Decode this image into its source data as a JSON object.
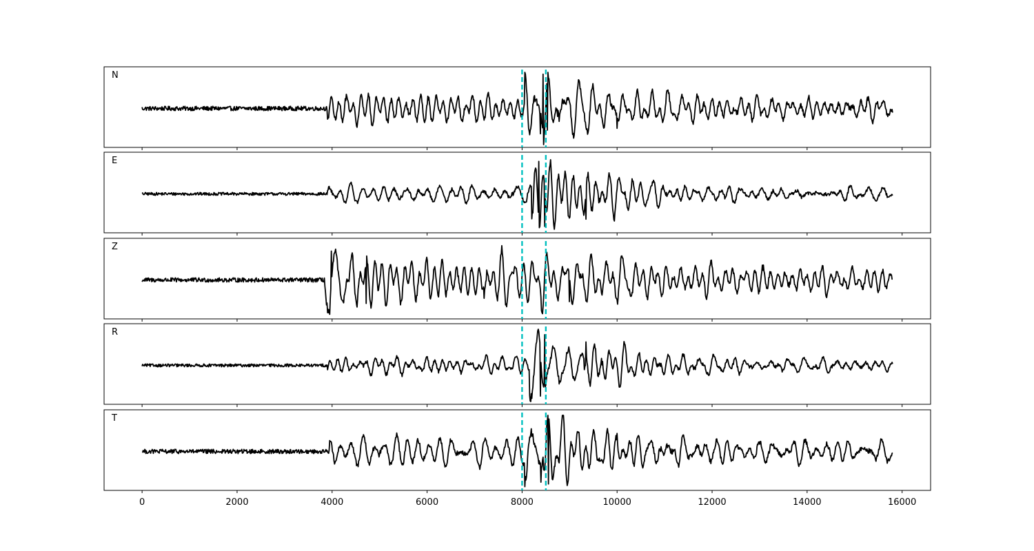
{
  "chart_data": {
    "type": "line",
    "layout": "stacked-panels",
    "shared_x": true,
    "xlim": [
      -800,
      16600
    ],
    "xticks": [
      0,
      2000,
      4000,
      6000,
      8000,
      10000,
      12000,
      14000,
      16000
    ],
    "xtick_labels": [
      "0",
      "2000",
      "4000",
      "6000",
      "8000",
      "10000",
      "12000",
      "14000",
      "16000"
    ],
    "x_range": [
      0,
      15800
    ],
    "grid": false,
    "trace_color": "#000000",
    "marker_color": "#00BFBF",
    "vertical_markers": [
      {
        "x": 8000,
        "style": "dashed"
      },
      {
        "x": 8500,
        "style": "dashed"
      }
    ],
    "panels": [
      {
        "label": "N",
        "noise": 0.06,
        "events": [
          {
            "t": 3900,
            "amp": 0.35,
            "decay": 6e-05
          },
          {
            "t": 8050,
            "amp": 1.0,
            "decay": 0.0012
          },
          {
            "t": 8450,
            "amp": 0.7,
            "decay": 0.0006
          }
        ],
        "coda": 0.28,
        "spikes": [
          {
            "x": 8380,
            "y": -0.7
          },
          {
            "x": 8440,
            "y": 0.95
          },
          {
            "x": 8530,
            "y": -0.6
          },
          {
            "x": 10000,
            "y": -0.55
          }
        ]
      },
      {
        "label": "E",
        "noise": 0.04,
        "events": [
          {
            "t": 3900,
            "amp": 0.18,
            "decay": 8e-05
          },
          {
            "t": 7800,
            "amp": 0.2,
            "decay": 0.0002
          },
          {
            "t": 8200,
            "amp": 1.0,
            "decay": 0.0007
          },
          {
            "t": 9200,
            "amp": 0.5,
            "decay": 0.0004
          }
        ],
        "coda": 0.2,
        "spikes": [
          {
            "x": 8350,
            "y": 0.9
          },
          {
            "x": 8480,
            "y": -0.9
          },
          {
            "x": 9350,
            "y": -0.7
          }
        ]
      },
      {
        "label": "Z",
        "noise": 0.06,
        "events": [
          {
            "t": 3830,
            "amp": 1.0,
            "decay": 0.0012
          },
          {
            "t": 4300,
            "amp": 0.5,
            "decay": 8e-05
          },
          {
            "t": 7200,
            "amp": 0.5,
            "decay": 0.0004
          },
          {
            "t": 8400,
            "amp": 0.5,
            "decay": 0.0005
          }
        ],
        "coda": 0.3,
        "spikes": [
          {
            "x": 3950,
            "y": -0.95
          },
          {
            "x": 3980,
            "y": 0.8
          },
          {
            "x": 4720,
            "y": -0.65
          },
          {
            "x": 9000,
            "y": -0.6
          }
        ]
      },
      {
        "label": "R",
        "noise": 0.04,
        "events": [
          {
            "t": 3900,
            "amp": 0.15,
            "decay": 8e-05
          },
          {
            "t": 7800,
            "amp": 0.2,
            "decay": 0.0002
          },
          {
            "t": 8150,
            "amp": 1.0,
            "decay": 0.0008
          },
          {
            "t": 9300,
            "amp": 0.55,
            "decay": 0.0005
          }
        ],
        "coda": 0.22,
        "spikes": [
          {
            "x": 8380,
            "y": -0.85
          },
          {
            "x": 8470,
            "y": 0.85
          },
          {
            "x": 9350,
            "y": 0.65
          }
        ]
      },
      {
        "label": "T",
        "noise": 0.06,
        "events": [
          {
            "t": 3950,
            "amp": 0.35,
            "decay": 6e-05
          },
          {
            "t": 8050,
            "amp": 1.0,
            "decay": 0.0012
          },
          {
            "t": 8450,
            "amp": 0.7,
            "decay": 0.0006
          }
        ],
        "coda": 0.3,
        "spikes": [
          {
            "x": 8400,
            "y": -0.85
          },
          {
            "x": 8520,
            "y": 0.8
          },
          {
            "x": 8560,
            "y": -0.9
          },
          {
            "x": 10000,
            "y": 0.5
          }
        ]
      }
    ]
  }
}
